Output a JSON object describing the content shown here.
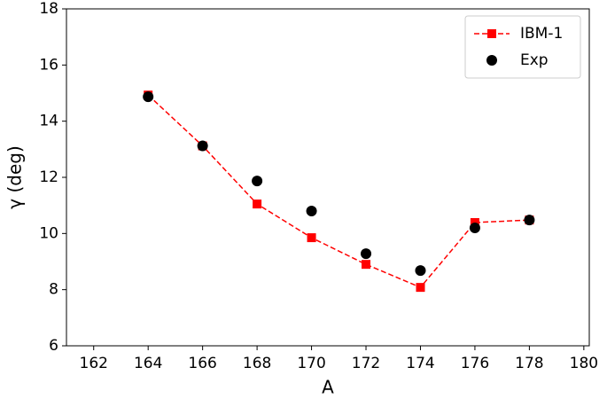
{
  "chart_data": {
    "type": "line",
    "xlabel": "A",
    "ylabel": "γ (deg)",
    "x": [
      164,
      166,
      168,
      170,
      172,
      174,
      176,
      178
    ],
    "series": [
      {
        "name": "IBM-1",
        "color": "#ff0000",
        "linestyle": "dashed",
        "marker": "square",
        "values": [
          14.93,
          13.12,
          11.05,
          9.85,
          8.9,
          8.08,
          10.39,
          10.48
        ]
      },
      {
        "name": "Exp",
        "color": "#000000",
        "linestyle": "none",
        "marker": "circle",
        "values": [
          14.87,
          13.12,
          11.87,
          10.8,
          9.28,
          8.68,
          10.2,
          10.48
        ]
      }
    ],
    "xlim": [
      161,
      180.2
    ],
    "xticks": [
      162,
      164,
      166,
      168,
      170,
      172,
      174,
      176,
      178,
      180
    ],
    "ylim": [
      6,
      18
    ],
    "yticks": [
      6,
      8,
      10,
      12,
      14,
      16,
      18
    ],
    "grid": false,
    "legend": "upper right"
  }
}
